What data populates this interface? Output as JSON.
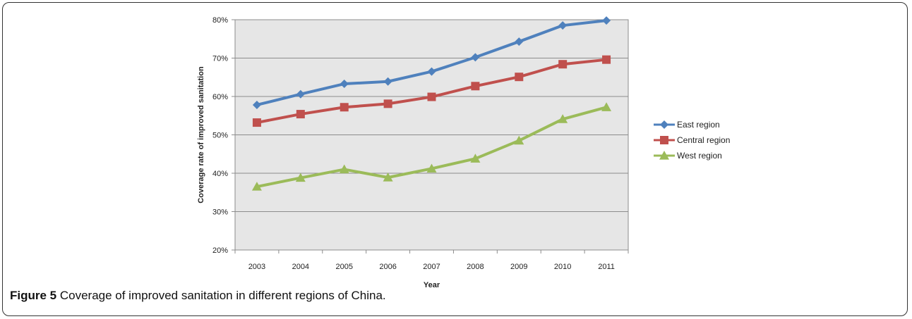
{
  "chart_data": {
    "type": "line",
    "title": "",
    "xlabel": "Year",
    "ylabel": "Coverage rate of improved sanitation",
    "categories": [
      "2003",
      "2004",
      "2005",
      "2006",
      "2007",
      "2008",
      "2009",
      "2010",
      "2011"
    ],
    "ylim": [
      20,
      80
    ],
    "yticks": [
      20,
      30,
      40,
      50,
      60,
      70,
      80
    ],
    "ytick_labels": [
      "20%",
      "30%",
      "40%",
      "50%",
      "60%",
      "70%",
      "80%"
    ],
    "grid": true,
    "legend_position": "right",
    "series": [
      {
        "name": "East region",
        "color": "#4f81bd",
        "marker": "diamond",
        "values": [
          57.8,
          60.6,
          63.3,
          63.9,
          66.5,
          70.2,
          74.3,
          78.5,
          79.8
        ]
      },
      {
        "name": "Central region",
        "color": "#c0504d",
        "marker": "square",
        "values": [
          53.2,
          55.4,
          57.2,
          58.1,
          59.9,
          62.7,
          65.1,
          68.4,
          69.6
        ]
      },
      {
        "name": "West region",
        "color": "#9bbb59",
        "marker": "triangle",
        "values": [
          36.5,
          38.8,
          41.0,
          38.9,
          41.2,
          43.8,
          48.5,
          54.1,
          57.2
        ]
      }
    ]
  },
  "caption": {
    "label": "Figure 5",
    "text": " Coverage of improved sanitation in different regions of China."
  }
}
